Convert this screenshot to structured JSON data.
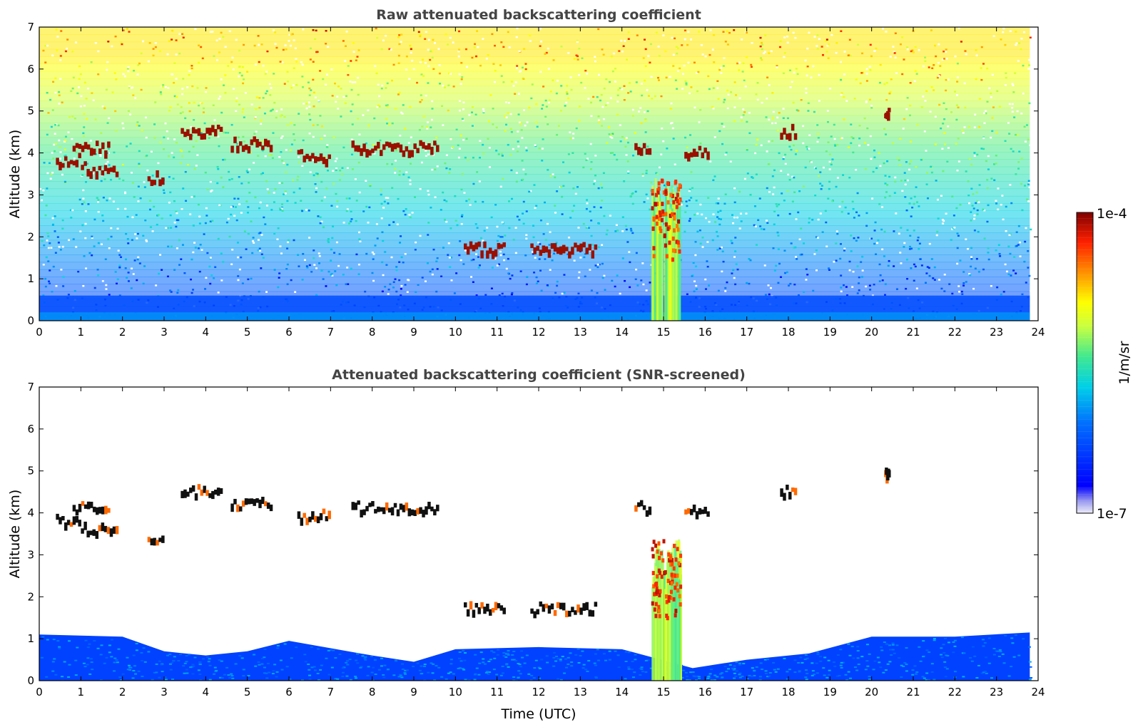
{
  "chart_data": [
    {
      "type": "heatmap",
      "title": "Raw attenuated backscattering coefficient",
      "xlabel": "",
      "ylabel": "Altitude (km)",
      "xlim": [
        0,
        24
      ],
      "ylim": [
        0,
        7
      ],
      "x_ticks": [
        "0",
        "1",
        "2",
        "3",
        "4",
        "5",
        "6",
        "7",
        "8",
        "9",
        "10",
        "11",
        "12",
        "13",
        "14",
        "15",
        "16",
        "17",
        "18",
        "19",
        "20",
        "21",
        "22",
        "23",
        "24"
      ],
      "y_ticks": [
        "0",
        "1",
        "2",
        "3",
        "4",
        "5",
        "6",
        "7"
      ],
      "data_extent_time_utc": [
        0,
        23.8
      ],
      "noisy_background": true,
      "cloud_layers": [
        {
          "t0": 0.4,
          "t1": 1.0,
          "alt_km": 3.8
        },
        {
          "t0": 0.8,
          "t1": 1.7,
          "alt_km": 4.1
        },
        {
          "t0": 1.0,
          "t1": 1.9,
          "alt_km": 3.6
        },
        {
          "t0": 2.6,
          "t1": 3.0,
          "alt_km": 3.4
        },
        {
          "t0": 3.4,
          "t1": 4.4,
          "alt_km": 4.5
        },
        {
          "t0": 4.6,
          "t1": 5.6,
          "alt_km": 4.2
        },
        {
          "t0": 6.2,
          "t1": 7.0,
          "alt_km": 3.9
        },
        {
          "t0": 7.5,
          "t1": 9.6,
          "alt_km": 4.1
        },
        {
          "t0": 10.2,
          "t1": 11.2,
          "alt_km": 1.7
        },
        {
          "t0": 11.8,
          "t1": 13.4,
          "alt_km": 1.7
        },
        {
          "t0": 14.3,
          "t1": 14.7,
          "alt_km": 4.1
        },
        {
          "t0": 15.5,
          "t1": 16.1,
          "alt_km": 4.0
        },
        {
          "t0": 17.8,
          "t1": 18.2,
          "alt_km": 4.5
        },
        {
          "t0": 20.3,
          "t1": 20.4,
          "alt_km": 4.9
        }
      ],
      "rain_column": {
        "t0": 14.7,
        "t1": 15.4,
        "top_km": 3.4
      }
    },
    {
      "type": "heatmap",
      "title": "Attenuated backscattering coefficient (SNR-screened)",
      "xlabel": "Time (UTC)",
      "ylabel": "Altitude (km)",
      "xlim": [
        0,
        24
      ],
      "ylim": [
        0,
        7
      ],
      "x_ticks": [
        "0",
        "1",
        "2",
        "3",
        "4",
        "5",
        "6",
        "7",
        "8",
        "9",
        "10",
        "11",
        "12",
        "13",
        "14",
        "15",
        "16",
        "17",
        "18",
        "19",
        "20",
        "21",
        "22",
        "23",
        "24"
      ],
      "y_ticks": [
        "0",
        "1",
        "2",
        "3",
        "4",
        "5",
        "6",
        "7"
      ],
      "data_extent_time_utc": [
        0,
        23.8
      ],
      "noisy_background": false,
      "boundary_layer_top_km": [
        [
          0,
          1.1
        ],
        [
          2,
          1.05
        ],
        [
          3,
          0.7
        ],
        [
          4,
          0.6
        ],
        [
          5,
          0.7
        ],
        [
          6,
          0.95
        ],
        [
          8,
          0.6
        ],
        [
          9,
          0.45
        ],
        [
          10,
          0.75
        ],
        [
          12,
          0.8
        ],
        [
          14,
          0.75
        ],
        [
          15.7,
          0.3
        ],
        [
          17,
          0.5
        ],
        [
          18.5,
          0.65
        ],
        [
          20,
          1.05
        ],
        [
          22,
          1.05
        ],
        [
          23.8,
          1.15
        ]
      ],
      "cloud_layers": [
        {
          "t0": 0.4,
          "t1": 1.0,
          "alt_km": 3.8
        },
        {
          "t0": 0.8,
          "t1": 1.7,
          "alt_km": 4.1
        },
        {
          "t0": 1.0,
          "t1": 1.9,
          "alt_km": 3.6
        },
        {
          "t0": 2.6,
          "t1": 3.0,
          "alt_km": 3.4
        },
        {
          "t0": 3.4,
          "t1": 4.4,
          "alt_km": 4.5
        },
        {
          "t0": 4.6,
          "t1": 5.6,
          "alt_km": 4.2
        },
        {
          "t0": 6.2,
          "t1": 7.0,
          "alt_km": 3.9
        },
        {
          "t0": 7.5,
          "t1": 9.6,
          "alt_km": 4.1
        },
        {
          "t0": 10.2,
          "t1": 11.2,
          "alt_km": 1.7
        },
        {
          "t0": 11.8,
          "t1": 13.4,
          "alt_km": 1.7
        },
        {
          "t0": 14.3,
          "t1": 14.7,
          "alt_km": 4.1
        },
        {
          "t0": 15.5,
          "t1": 16.1,
          "alt_km": 4.0
        },
        {
          "t0": 17.8,
          "t1": 18.2,
          "alt_km": 4.5
        },
        {
          "t0": 20.3,
          "t1": 20.4,
          "alt_km": 4.9
        }
      ],
      "rain_column": {
        "t0": 14.7,
        "t1": 15.4,
        "top_km": 3.4
      }
    }
  ],
  "colorbar": {
    "label": "1/m/sr",
    "max_label": "1e-4",
    "min_label": "1e-7",
    "scale": "log",
    "colormap": [
      "#e8e8f8",
      "#0000ff",
      "#0080ff",
      "#00e0e0",
      "#80ff80",
      "#ffff00",
      "#ff8000",
      "#ff0000",
      "#800000"
    ]
  }
}
